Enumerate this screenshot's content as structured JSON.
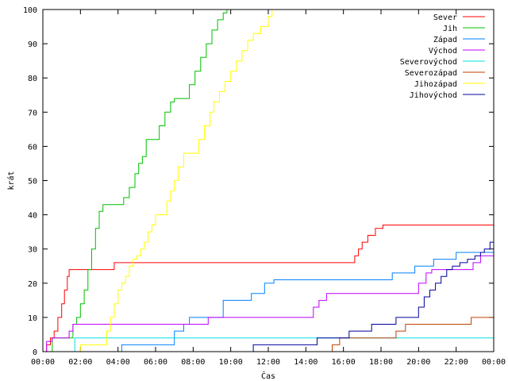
{
  "chart_data": {
    "type": "line",
    "xlabel": "Čas",
    "ylabel": "krát",
    "xlim": [
      0,
      24
    ],
    "ylim": [
      0,
      100
    ],
    "x_ticks": [
      {
        "value": 0,
        "label": "00:00"
      },
      {
        "value": 2,
        "label": "02:00"
      },
      {
        "value": 4,
        "label": "04:00"
      },
      {
        "value": 6,
        "label": "06:00"
      },
      {
        "value": 8,
        "label": "08:00"
      },
      {
        "value": 10,
        "label": "10:00"
      },
      {
        "value": 12,
        "label": "12:00"
      },
      {
        "value": 14,
        "label": "14:00"
      },
      {
        "value": 16,
        "label": "16:00"
      },
      {
        "value": 18,
        "label": "18:00"
      },
      {
        "value": 20,
        "label": "20:00"
      },
      {
        "value": 22,
        "label": "22:00"
      },
      {
        "value": 24,
        "label": "00:00"
      }
    ],
    "y_ticks": [
      0,
      10,
      20,
      30,
      40,
      50,
      60,
      70,
      80,
      90,
      100
    ],
    "grid": false,
    "legend_position": "top-right",
    "series": [
      {
        "name": "Sever",
        "color": "#ff0000",
        "points": [
          [
            0.05,
            0
          ],
          [
            0.2,
            2
          ],
          [
            0.4,
            4
          ],
          [
            0.6,
            6
          ],
          [
            0.8,
            10
          ],
          [
            1.0,
            14
          ],
          [
            1.15,
            18
          ],
          [
            1.3,
            22
          ],
          [
            1.4,
            24
          ],
          [
            3.7,
            24
          ],
          [
            3.8,
            26
          ],
          [
            16.4,
            26
          ],
          [
            16.6,
            28
          ],
          [
            16.8,
            30
          ],
          [
            17.0,
            32
          ],
          [
            17.3,
            34
          ],
          [
            17.7,
            36
          ],
          [
            18.1,
            37
          ],
          [
            24,
            37
          ]
        ]
      },
      {
        "name": "Jih",
        "color": "#00c000",
        "points": [
          [
            0.3,
            0
          ],
          [
            0.5,
            4
          ],
          [
            1.3,
            4
          ],
          [
            1.6,
            8
          ],
          [
            1.8,
            10
          ],
          [
            2.0,
            14
          ],
          [
            2.2,
            18
          ],
          [
            2.4,
            24
          ],
          [
            2.6,
            30
          ],
          [
            2.8,
            36
          ],
          [
            3.0,
            41
          ],
          [
            3.2,
            43
          ],
          [
            4.1,
            43
          ],
          [
            4.3,
            45
          ],
          [
            4.6,
            48
          ],
          [
            4.9,
            52
          ],
          [
            5.1,
            55
          ],
          [
            5.3,
            57
          ],
          [
            5.5,
            62
          ],
          [
            5.9,
            62
          ],
          [
            6.2,
            66
          ],
          [
            6.5,
            70
          ],
          [
            6.8,
            73
          ],
          [
            7.0,
            74
          ],
          [
            7.3,
            74
          ],
          [
            7.6,
            74
          ],
          [
            7.8,
            78
          ],
          [
            8.1,
            82
          ],
          [
            8.4,
            86
          ],
          [
            8.7,
            90
          ],
          [
            9.0,
            94
          ],
          [
            9.3,
            97
          ],
          [
            9.6,
            99
          ],
          [
            9.8,
            100
          ]
        ]
      },
      {
        "name": "Západ",
        "color": "#0080ff",
        "points": [
          [
            0,
            0
          ],
          [
            4.1,
            0
          ],
          [
            4.2,
            2
          ],
          [
            6.8,
            2
          ],
          [
            7.0,
            6
          ],
          [
            7.5,
            8
          ],
          [
            7.8,
            10
          ],
          [
            9.5,
            10
          ],
          [
            9.6,
            15
          ],
          [
            10.9,
            15
          ],
          [
            11.1,
            17
          ],
          [
            11.8,
            20
          ],
          [
            12.3,
            21
          ],
          [
            18.4,
            21
          ],
          [
            18.6,
            23
          ],
          [
            19.5,
            23
          ],
          [
            19.8,
            25
          ],
          [
            20.5,
            25
          ],
          [
            20.8,
            27
          ],
          [
            21.7,
            27
          ],
          [
            22.0,
            29
          ],
          [
            24,
            29
          ]
        ]
      },
      {
        "name": "Východ",
        "color": "#c000ff",
        "points": [
          [
            0.1,
            0
          ],
          [
            0.2,
            3
          ],
          [
            0.5,
            4
          ],
          [
            1.0,
            4
          ],
          [
            1.4,
            6
          ],
          [
            1.6,
            8
          ],
          [
            8.6,
            8
          ],
          [
            8.8,
            10
          ],
          [
            14.2,
            10
          ],
          [
            14.4,
            13
          ],
          [
            14.7,
            15
          ],
          [
            15.1,
            17
          ],
          [
            19.8,
            17
          ],
          [
            20.0,
            20
          ],
          [
            20.4,
            23
          ],
          [
            20.7,
            24
          ],
          [
            22.6,
            24
          ],
          [
            22.9,
            26
          ],
          [
            23.3,
            28
          ],
          [
            24,
            28
          ]
        ]
      },
      {
        "name": "Severovýchod",
        "color": "#00e0e0",
        "points": [
          [
            1.6,
            0
          ],
          [
            1.7,
            4
          ],
          [
            24,
            4
          ]
        ]
      },
      {
        "name": "Severozápad",
        "color": "#c04000",
        "points": [
          [
            15.2,
            0
          ],
          [
            15.4,
            2
          ],
          [
            15.8,
            4
          ],
          [
            18.6,
            4
          ],
          [
            18.8,
            6
          ],
          [
            19.3,
            8
          ],
          [
            22.6,
            8
          ],
          [
            22.8,
            10
          ],
          [
            24,
            10
          ]
        ]
      },
      {
        "name": "Jihozápad",
        "color": "#ffff00",
        "points": [
          [
            1.7,
            0
          ],
          [
            2.0,
            2
          ],
          [
            3.2,
            2
          ],
          [
            3.4,
            6
          ],
          [
            3.6,
            10
          ],
          [
            3.8,
            14
          ],
          [
            4.0,
            18
          ],
          [
            4.2,
            20
          ],
          [
            4.4,
            22
          ],
          [
            4.6,
            25
          ],
          [
            4.8,
            27
          ],
          [
            5.0,
            28
          ],
          [
            5.2,
            30
          ],
          [
            5.4,
            32
          ],
          [
            5.6,
            35
          ],
          [
            5.8,
            37
          ],
          [
            6.0,
            40
          ],
          [
            6.4,
            40
          ],
          [
            6.6,
            44
          ],
          [
            6.8,
            47
          ],
          [
            7.0,
            50
          ],
          [
            7.2,
            54
          ],
          [
            7.5,
            58
          ],
          [
            8.0,
            58
          ],
          [
            8.3,
            62
          ],
          [
            8.6,
            66
          ],
          [
            8.9,
            70
          ],
          [
            9.1,
            73
          ],
          [
            9.4,
            76
          ],
          [
            9.7,
            79
          ],
          [
            10.0,
            82
          ],
          [
            10.3,
            85
          ],
          [
            10.6,
            88
          ],
          [
            10.9,
            91
          ],
          [
            11.2,
            93
          ],
          [
            11.6,
            95
          ],
          [
            12.0,
            98
          ],
          [
            12.2,
            100
          ]
        ]
      },
      {
        "name": "Jihovýchod",
        "color": "#0000a0",
        "points": [
          [
            11.0,
            0
          ],
          [
            11.2,
            2
          ],
          [
            14.4,
            2
          ],
          [
            14.6,
            4
          ],
          [
            16.0,
            4
          ],
          [
            16.3,
            6
          ],
          [
            17.3,
            6
          ],
          [
            17.5,
            8
          ],
          [
            18.6,
            8
          ],
          [
            18.8,
            10
          ],
          [
            19.7,
            10
          ],
          [
            20.0,
            13
          ],
          [
            20.3,
            16
          ],
          [
            20.6,
            18
          ],
          [
            20.9,
            20
          ],
          [
            21.2,
            22
          ],
          [
            21.5,
            24
          ],
          [
            21.8,
            25
          ],
          [
            22.2,
            26
          ],
          [
            22.6,
            27
          ],
          [
            23.0,
            28
          ],
          [
            23.3,
            29
          ],
          [
            23.5,
            30
          ],
          [
            23.8,
            32
          ],
          [
            24,
            32
          ]
        ]
      }
    ]
  }
}
